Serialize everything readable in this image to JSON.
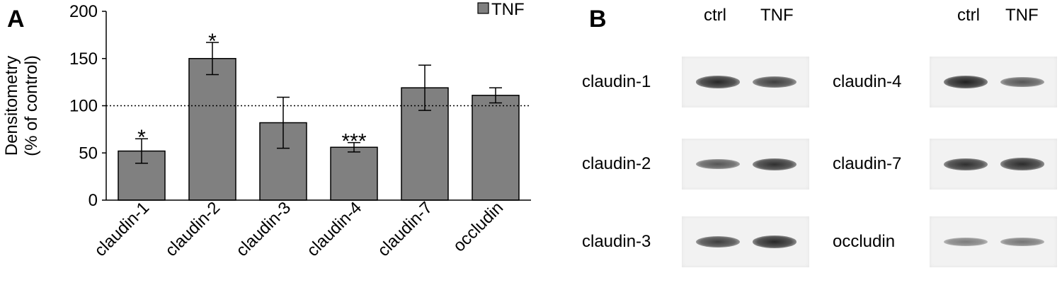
{
  "panel_a": {
    "letter": "A"
  },
  "panel_b": {
    "letter": "B",
    "column_labels": [
      "ctrl",
      "TNF"
    ],
    "left_column": [
      {
        "label": "claudin-1",
        "ctrl_intensity": 0.95,
        "tnf_intensity": 0.8
      },
      {
        "label": "claudin-2",
        "ctrl_intensity": 0.65,
        "tnf_intensity": 0.9
      },
      {
        "label": "claudin-3",
        "ctrl_intensity": 0.8,
        "tnf_intensity": 0.95
      }
    ],
    "right_column": [
      {
        "label": "claudin-4",
        "ctrl_intensity": 1.0,
        "tnf_intensity": 0.65
      },
      {
        "label": "claudin-7",
        "ctrl_intensity": 0.9,
        "tnf_intensity": 0.92
      },
      {
        "label": "occludin",
        "ctrl_intensity": 0.4,
        "tnf_intensity": 0.45
      }
    ]
  },
  "chart_data": {
    "type": "bar",
    "title": "",
    "xlabel": "",
    "ylabel": [
      "Densitometry",
      "(% of control)"
    ],
    "ylim": [
      0,
      200
    ],
    "yticks": [
      0,
      50,
      100,
      150,
      200
    ],
    "reference_line": 100,
    "grid": false,
    "legend_position": "top-right",
    "bar_color": "#808080",
    "categories": [
      "claudin-1",
      "claudin-2",
      "claudin-3",
      "claudin-4",
      "claudin-7",
      "occludin"
    ],
    "series": [
      {
        "name": "TNF",
        "values": [
          52,
          150,
          82,
          56,
          119,
          111
        ],
        "errors": [
          13,
          17,
          27,
          5,
          24,
          8
        ],
        "significance": [
          "*",
          "*",
          "",
          "***",
          "",
          ""
        ]
      }
    ]
  }
}
